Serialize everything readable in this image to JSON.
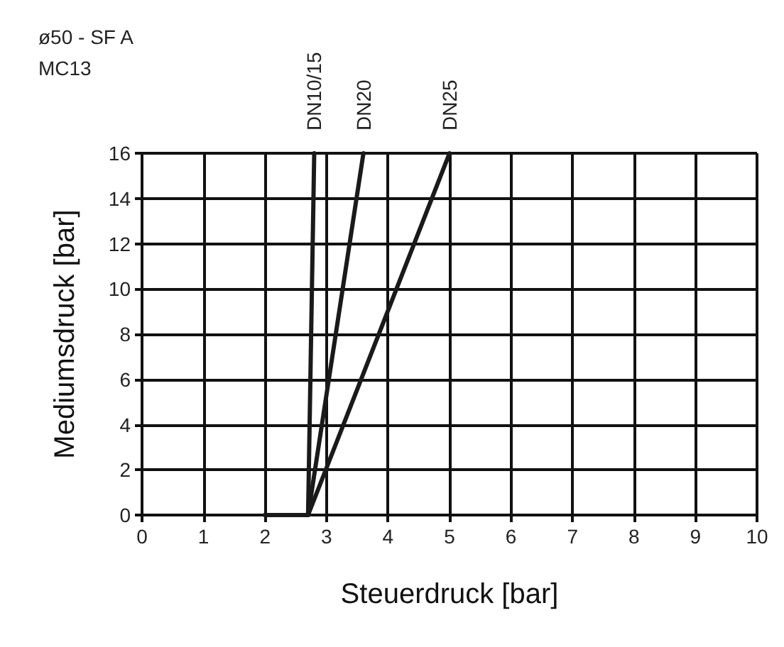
{
  "chart_data": {
    "type": "line",
    "title": "ø50 - SF A",
    "subtitle": "MC13",
    "xlabel": "Steuerdruck [bar]",
    "ylabel": "Mediumsdruck [bar]",
    "xlim": [
      0,
      10
    ],
    "xticks": [
      0,
      1,
      2,
      3,
      4,
      5,
      6,
      7,
      8,
      9,
      10
    ],
    "ylim": [
      0,
      16
    ],
    "yticks": [
      0,
      2,
      4,
      6,
      8,
      10,
      12,
      14,
      16
    ],
    "grid": true,
    "legend": false,
    "marker": "none",
    "line_style": "solid",
    "series": [
      {
        "name": "DN10/15",
        "color": "#1a1a1a",
        "x": [
          2,
          2.7,
          2.8
        ],
        "values": [
          0,
          0,
          16
        ]
      },
      {
        "name": "DN20",
        "color": "#1a1a1a",
        "x": [
          2,
          2.7,
          3.6
        ],
        "values": [
          0,
          0,
          16
        ]
      },
      {
        "name": "DN25",
        "color": "#1a1a1a",
        "x": [
          2,
          2.7,
          5
        ],
        "values": [
          0,
          0,
          16
        ]
      }
    ]
  }
}
